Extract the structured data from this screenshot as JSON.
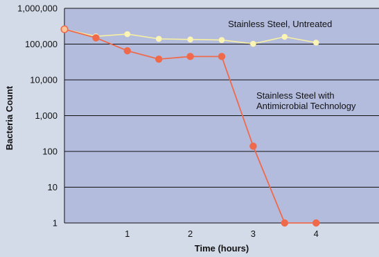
{
  "chart_data": {
    "type": "line",
    "xlabel": "Time (hours)",
    "ylabel": "Bacteria Count",
    "x_ticks": [
      1,
      2,
      3,
      4
    ],
    "y_ticks": [
      1,
      10,
      100,
      1000,
      10000,
      100000,
      1000000
    ],
    "y_tick_labels": [
      "1",
      "10",
      "100",
      "1,000",
      "10,000",
      "100,000",
      "1,000,000"
    ],
    "y_scale": "log",
    "xlim": [
      0,
      5
    ],
    "ylim": [
      1,
      1000000
    ],
    "grid": "horizontal",
    "colors": {
      "background": "#d4dbe8",
      "plot_area": "#b4bcde",
      "gridline": "#111111",
      "untreated_line": "#f7f0a0",
      "untreated_marker": "#fbf4b4",
      "treated_line": "#ee6a4a",
      "treated_marker": "#ee6a4a",
      "start_marker_fill": "#f9c69a",
      "start_marker_stroke": "#ee6a4a"
    },
    "series": [
      {
        "name": "Stainless Steel, Untreated",
        "x": [
          0,
          0.5,
          1,
          1.5,
          2,
          2.5,
          3,
          3.5,
          4
        ],
        "y": [
          260000,
          165000,
          190000,
          140000,
          135000,
          130000,
          102000,
          160000,
          110000
        ]
      },
      {
        "name": "Stainless Steel with Antimicrobial Technology",
        "x": [
          0,
          0.5,
          1,
          1.5,
          2,
          2.5,
          3,
          3.5,
          4
        ],
        "y": [
          260000,
          150000,
          65000,
          38000,
          45000,
          45000,
          140,
          1,
          1
        ]
      }
    ],
    "annotations": [
      {
        "series_index": 0,
        "lines": [
          "Stainless Steel, Untreated"
        ],
        "anchor": {
          "x": 2.6,
          "y": 300000
        }
      },
      {
        "series_index": 1,
        "lines": [
          "Stainless Steel with",
          "Antimicrobial Technology"
        ],
        "anchor": {
          "x": 3.05,
          "y": 3000
        }
      }
    ]
  }
}
